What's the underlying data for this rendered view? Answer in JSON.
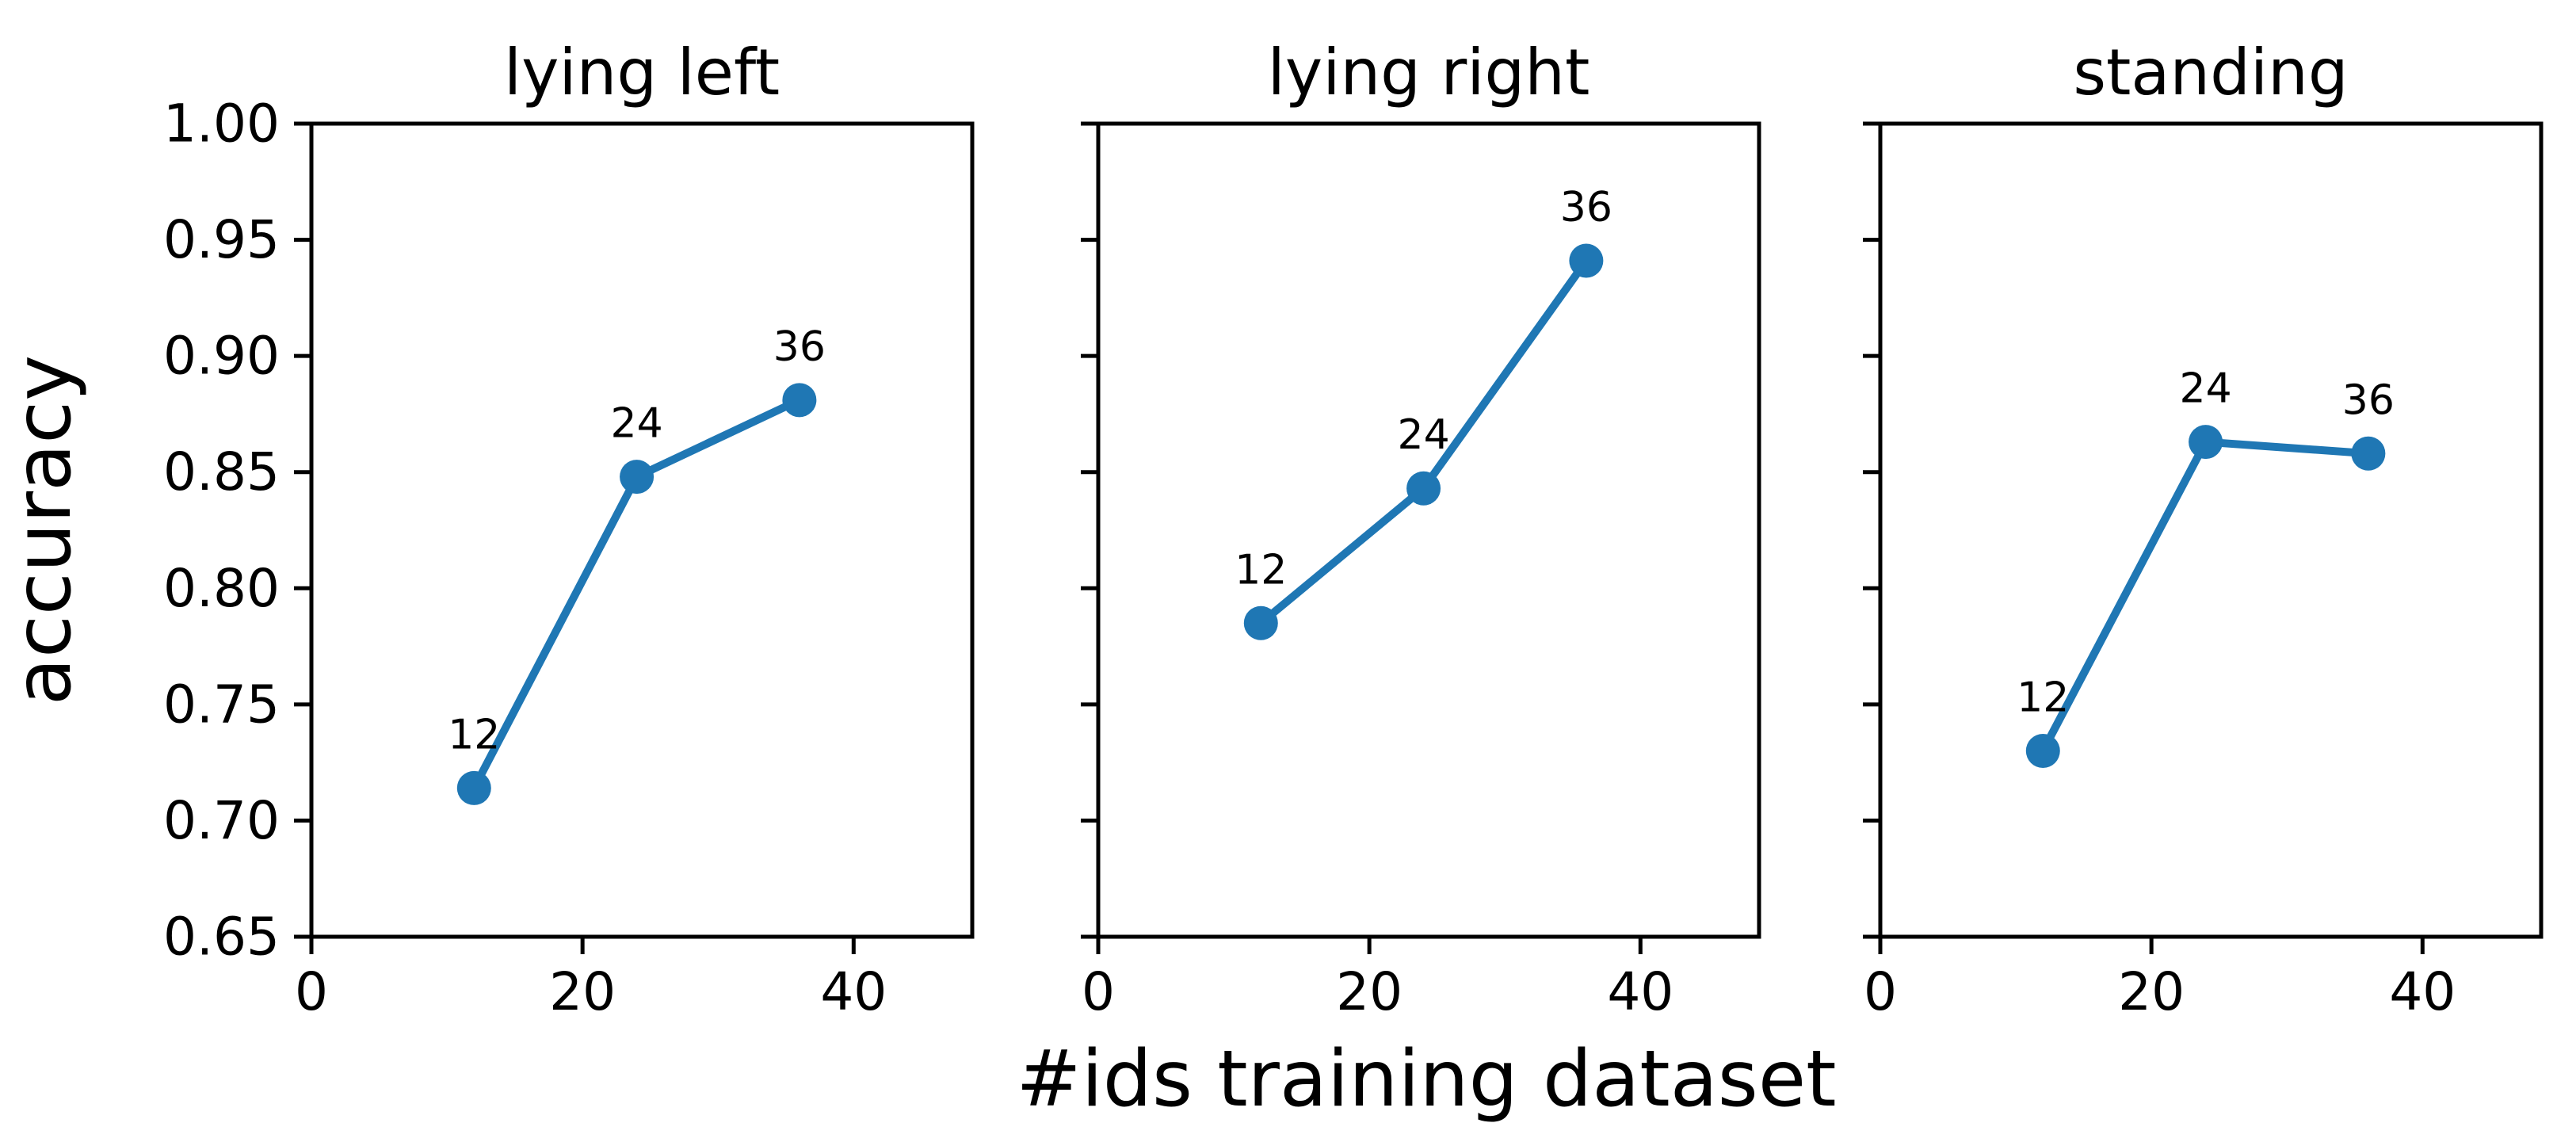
{
  "chart_data": {
    "type": "line",
    "title": "",
    "xlabel": "#ids training dataset",
    "ylabel": "accuracy",
    "x": [
      12,
      24,
      36
    ],
    "point_labels": [
      "12",
      "24",
      "36"
    ],
    "xlim": [
      0,
      48.75
    ],
    "ylim": [
      0.65,
      1.0
    ],
    "xticks": [
      0,
      20,
      40
    ],
    "yticks": [
      0.65,
      0.7,
      0.75,
      0.8,
      0.85,
      0.9,
      0.95,
      1.0
    ],
    "ytick_label_format": "2dp",
    "grid": false,
    "legend": null,
    "line_color": "#1f77b4",
    "axis_color": "#000000",
    "marker": "circle",
    "subplots": [
      {
        "title": "lying left",
        "values": [
          0.714,
          0.848,
          0.881
        ]
      },
      {
        "title": "lying right",
        "values": [
          0.785,
          0.843,
          0.941
        ]
      },
      {
        "title": "standing",
        "values": [
          0.73,
          0.863,
          0.858
        ]
      }
    ]
  }
}
